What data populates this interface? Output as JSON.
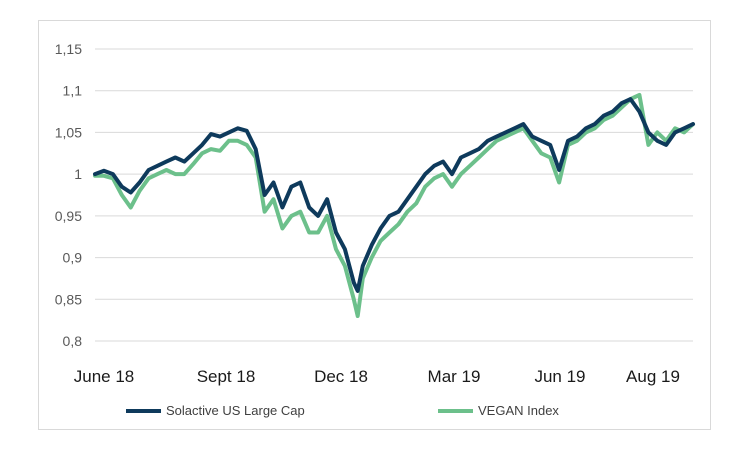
{
  "chart_data": {
    "type": "line",
    "title": "",
    "xlabel": "",
    "ylabel": "",
    "ylim": [
      0.8,
      1.15
    ],
    "yticks": [
      "0,8",
      "0,85",
      "0,9",
      "0,95",
      "1",
      "1,05",
      "1,1",
      "1,15"
    ],
    "xticks": [
      "June 18",
      "Sept 18",
      "Dec 18",
      "Mar 19",
      "Jun 19",
      "Aug 19"
    ],
    "grid": "horizontal",
    "legend_position": "bottom",
    "series": [
      {
        "name": "Solactive US Large Cap",
        "color": "#0e3a5c",
        "x": [
          "2018-06-01",
          "2018-06-08",
          "2018-06-15",
          "2018-06-22",
          "2018-06-29",
          "2018-07-06",
          "2018-07-13",
          "2018-07-20",
          "2018-07-27",
          "2018-08-03",
          "2018-08-10",
          "2018-08-17",
          "2018-08-24",
          "2018-08-31",
          "2018-09-07",
          "2018-09-14",
          "2018-09-21",
          "2018-09-28",
          "2018-10-05",
          "2018-10-12",
          "2018-10-19",
          "2018-10-26",
          "2018-11-02",
          "2018-11-09",
          "2018-11-16",
          "2018-11-23",
          "2018-11-30",
          "2018-12-07",
          "2018-12-14",
          "2018-12-21",
          "2018-12-24",
          "2018-12-28",
          "2019-01-04",
          "2019-01-11",
          "2019-01-18",
          "2019-01-25",
          "2019-02-01",
          "2019-02-08",
          "2019-02-15",
          "2019-02-22",
          "2019-03-01",
          "2019-03-08",
          "2019-03-15",
          "2019-03-22",
          "2019-03-29",
          "2019-04-05",
          "2019-04-12",
          "2019-04-19",
          "2019-04-26",
          "2019-05-03",
          "2019-05-10",
          "2019-05-17",
          "2019-05-24",
          "2019-05-31",
          "2019-06-07",
          "2019-06-14",
          "2019-06-21",
          "2019-06-28",
          "2019-07-05",
          "2019-07-12",
          "2019-07-19",
          "2019-07-26",
          "2019-08-02",
          "2019-08-09",
          "2019-08-16",
          "2019-08-23",
          "2019-08-30",
          "2019-09-06",
          "2019-09-13"
        ],
        "values": [
          1.0,
          1.004,
          1.0,
          0.985,
          0.978,
          0.99,
          1.005,
          1.01,
          1.015,
          1.02,
          1.015,
          1.025,
          1.035,
          1.048,
          1.045,
          1.05,
          1.055,
          1.052,
          1.03,
          0.975,
          0.99,
          0.96,
          0.985,
          0.99,
          0.96,
          0.95,
          0.97,
          0.93,
          0.91,
          0.87,
          0.86,
          0.89,
          0.915,
          0.935,
          0.95,
          0.955,
          0.97,
          0.985,
          1.0,
          1.01,
          1.015,
          1.0,
          1.02,
          1.025,
          1.03,
          1.04,
          1.045,
          1.05,
          1.055,
          1.06,
          1.045,
          1.04,
          1.035,
          1.005,
          1.04,
          1.045,
          1.055,
          1.06,
          1.07,
          1.075,
          1.085,
          1.09,
          1.075,
          1.05,
          1.04,
          1.035,
          1.05,
          1.055,
          1.06
        ]
      },
      {
        "name": "VEGAN Index",
        "color": "#6cc08b",
        "x": [
          "2018-06-01",
          "2018-06-08",
          "2018-06-15",
          "2018-06-22",
          "2018-06-29",
          "2018-07-06",
          "2018-07-13",
          "2018-07-20",
          "2018-07-27",
          "2018-08-03",
          "2018-08-10",
          "2018-08-17",
          "2018-08-24",
          "2018-08-31",
          "2018-09-07",
          "2018-09-14",
          "2018-09-21",
          "2018-09-28",
          "2018-10-05",
          "2018-10-12",
          "2018-10-19",
          "2018-10-26",
          "2018-11-02",
          "2018-11-09",
          "2018-11-16",
          "2018-11-23",
          "2018-11-30",
          "2018-12-07",
          "2018-12-14",
          "2018-12-21",
          "2018-12-24",
          "2018-12-28",
          "2019-01-04",
          "2019-01-11",
          "2019-01-18",
          "2019-01-25",
          "2019-02-01",
          "2019-02-08",
          "2019-02-15",
          "2019-02-22",
          "2019-03-01",
          "2019-03-08",
          "2019-03-15",
          "2019-03-22",
          "2019-03-29",
          "2019-04-05",
          "2019-04-12",
          "2019-04-19",
          "2019-04-26",
          "2019-05-03",
          "2019-05-10",
          "2019-05-17",
          "2019-05-24",
          "2019-05-31",
          "2019-06-07",
          "2019-06-14",
          "2019-06-21",
          "2019-06-28",
          "2019-07-05",
          "2019-07-12",
          "2019-07-19",
          "2019-07-26",
          "2019-08-02",
          "2019-08-09",
          "2019-08-16",
          "2019-08-23",
          "2019-08-30",
          "2019-09-06",
          "2019-09-13"
        ],
        "values": [
          0.998,
          0.998,
          0.995,
          0.975,
          0.96,
          0.98,
          0.995,
          1.0,
          1.005,
          1.0,
          1.0,
          1.012,
          1.025,
          1.03,
          1.028,
          1.04,
          1.04,
          1.035,
          1.02,
          0.955,
          0.97,
          0.935,
          0.95,
          0.955,
          0.93,
          0.93,
          0.95,
          0.91,
          0.89,
          0.85,
          0.83,
          0.875,
          0.9,
          0.92,
          0.93,
          0.94,
          0.955,
          0.965,
          0.985,
          0.995,
          1.0,
          0.985,
          1.0,
          1.01,
          1.02,
          1.03,
          1.04,
          1.045,
          1.05,
          1.055,
          1.04,
          1.025,
          1.02,
          0.99,
          1.035,
          1.04,
          1.05,
          1.055,
          1.065,
          1.07,
          1.08,
          1.09,
          1.095,
          1.035,
          1.05,
          1.04,
          1.055,
          1.05,
          1.06
        ]
      }
    ]
  }
}
